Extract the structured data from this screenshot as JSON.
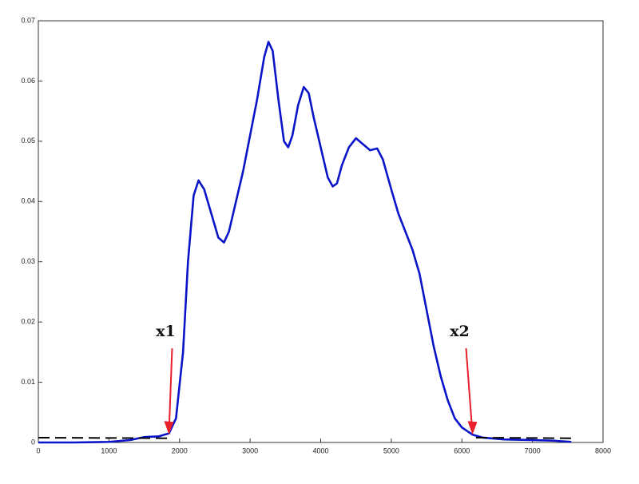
{
  "chart_data": {
    "type": "line",
    "xlim": [
      0,
      8000
    ],
    "xticks": [
      0,
      1000,
      2000,
      3000,
      4000,
      5000,
      6000,
      7000,
      8000
    ],
    "ylim": [
      0,
      0.07
    ],
    "yticks": [
      0,
      0.01,
      0.02,
      0.03,
      0.04,
      0.05,
      0.06,
      0.07
    ],
    "series": [
      {
        "color": "#0a14c8",
        "style": "solid",
        "x": [
          0,
          500,
          1000,
          1300,
          1500,
          1700,
          1850,
          1950,
          2050,
          2120,
          2200,
          2270,
          2350,
          2450,
          2550,
          2630,
          2700,
          2800,
          2900,
          3000,
          3100,
          3200,
          3260,
          3320,
          3400,
          3480,
          3540,
          3600,
          3680,
          3760,
          3830,
          3900,
          4000,
          4100,
          4170,
          4230,
          4300,
          4400,
          4500,
          4600,
          4700,
          4800,
          4880,
          5000,
          5100,
          5200,
          5300,
          5400,
          5500,
          5600,
          5700,
          5800,
          5900,
          6000,
          6150,
          6300,
          6600,
          7000,
          7300,
          7550
        ],
        "values": [
          0,
          0,
          0.0001,
          0.0004,
          0.0009,
          0.001,
          0.0015,
          0.004,
          0.015,
          0.03,
          0.041,
          0.0435,
          0.042,
          0.038,
          0.034,
          0.0332,
          0.035,
          0.04,
          0.045,
          0.051,
          0.057,
          0.064,
          0.0665,
          0.065,
          0.057,
          0.05,
          0.049,
          0.051,
          0.056,
          0.059,
          0.058,
          0.054,
          0.049,
          0.044,
          0.0425,
          0.043,
          0.046,
          0.049,
          0.0505,
          0.0495,
          0.0485,
          0.0488,
          0.047,
          0.042,
          0.038,
          0.035,
          0.032,
          0.028,
          0.022,
          0.016,
          0.011,
          0.007,
          0.004,
          0.0025,
          0.0013,
          0.0008,
          0.0005,
          0.0004,
          0.0003,
          0.0001
        ]
      },
      {
        "color": "#000000",
        "style": "dashed",
        "x": [
          0,
          1850,
          4000,
          6200,
          7600
        ],
        "values": [
          0.0008,
          0.0007,
          null,
          0.0008,
          0.0007
        ]
      }
    ],
    "annotations": [
      {
        "text": "x1",
        "color": "#e8202a",
        "x": 1850,
        "y": 0.0013
      },
      {
        "text": "x2",
        "color": "#e8202a",
        "x": 6150,
        "y": 0.0013
      }
    ],
    "grid": false
  }
}
